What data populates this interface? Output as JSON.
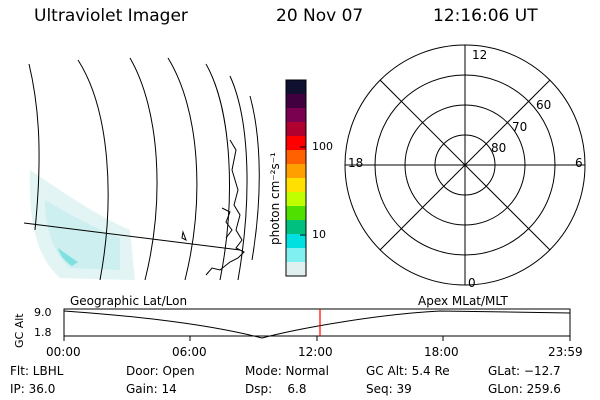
{
  "header": {
    "instrument": "Ultraviolet Imager",
    "date": "20 Nov 07",
    "time": "12:16:06 UT"
  },
  "colorbar": {
    "unit_label": "photon cm⁻²s⁻¹",
    "ticks": [
      "100",
      "10"
    ],
    "colors": [
      "#101030",
      "#400040",
      "#7a0050",
      "#b00030",
      "#ff0000",
      "#ff6000",
      "#ffa000",
      "#ffe000",
      "#c0ff00",
      "#50e000",
      "#00c080",
      "#00e0e0",
      "#80f0f0",
      "#e0f0f0"
    ]
  },
  "polar": {
    "lat_labels": [
      "60",
      "70",
      "80"
    ],
    "mlt_labels": {
      "top": "12",
      "left": "18",
      "right": "6",
      "bottom": "0"
    }
  },
  "timeline": {
    "left_title": "Geographic Lat/Lon",
    "right_title": "Apex MLat/MLT",
    "ylabel": "GC Alt",
    "ymax": "9.0",
    "ymin": "1.8",
    "xticks": [
      "00:00",
      "06:00",
      "12:00",
      "18:00",
      "23:59"
    ],
    "marker_time": "12:16"
  },
  "status": {
    "flt": "Flt: LBHL",
    "ip": "IP: 36.0",
    "door": "Door: Open",
    "gain": "Gain: 14",
    "mode": "Mode: Normal",
    "dsp": "Dsp:    6.8",
    "gcalt": "GC Alt: 5.4 Re",
    "seq": "Seq: 39",
    "glat": "GLat: −12.7",
    "glon": "GLon: 259.6"
  }
}
